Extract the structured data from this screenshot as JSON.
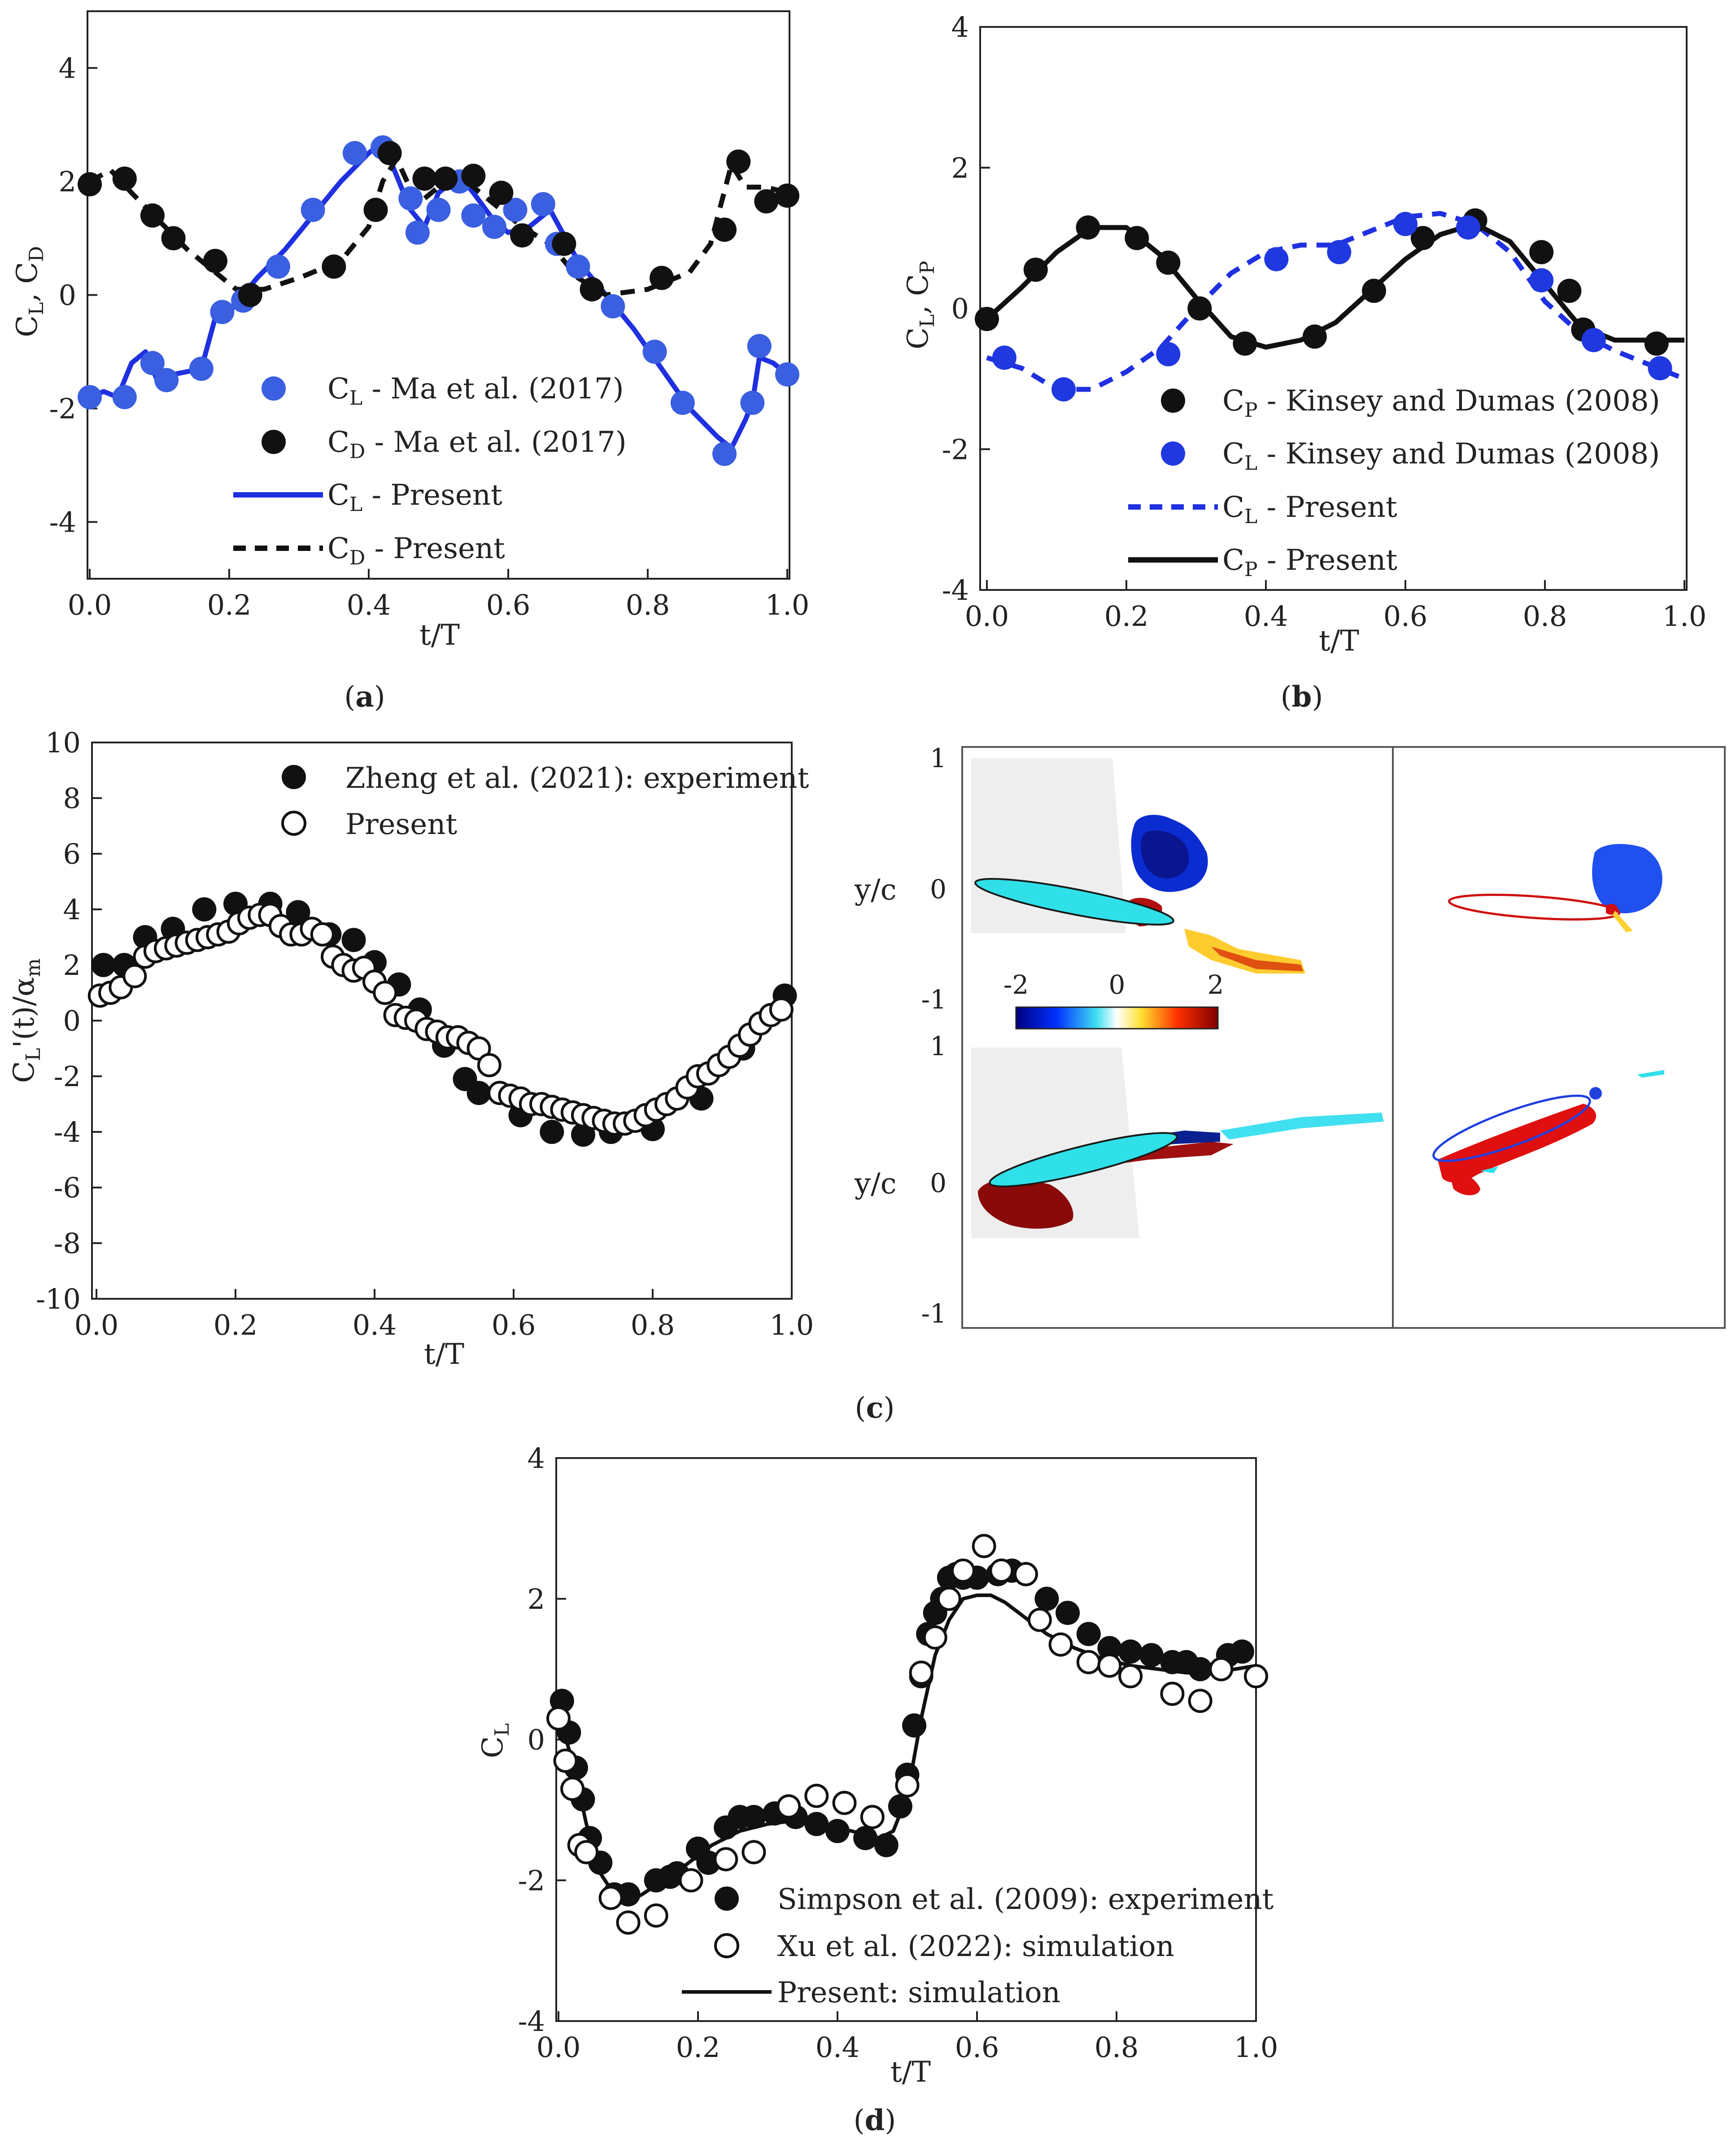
{
  "chart_data": [
    {
      "panel": "a",
      "panel_label": "(a)",
      "type": "line",
      "title": "",
      "xlabel": "t/T",
      "ylabel": "C_L, C_D",
      "xlim": [
        0,
        1.0
      ],
      "ylim": [
        -5,
        5
      ],
      "xticks": [
        "0.0",
        "0.2",
        "0.4",
        "0.6",
        "0.8",
        "1.0"
      ],
      "yticks": [
        "-4",
        "-2",
        "0",
        "2",
        "4"
      ],
      "legend": [
        {
          "label": "C_L - Ma et al. (2017)"
        },
        {
          "label": "C_D - Ma et al. (2017)"
        },
        {
          "label": "C_L - Present"
        },
        {
          "label": "C_D - Present"
        }
      ],
      "series": [
        {
          "name": "C_L - Ma et al. (2017)",
          "kind": "marker",
          "color": "#3a5fe0",
          "x": [
            0.0,
            0.05,
            0.09,
            0.11,
            0.16,
            0.19,
            0.22,
            0.27,
            0.32,
            0.38,
            0.42,
            0.46,
            0.47,
            0.5,
            0.53,
            0.55,
            0.58,
            0.61,
            0.65,
            0.67,
            0.7,
            0.75,
            0.81,
            0.85,
            0.91,
            0.95,
            0.96,
            1.0
          ],
          "y": [
            -1.8,
            -1.8,
            -1.2,
            -1.5,
            -1.3,
            -0.3,
            -0.1,
            0.5,
            1.5,
            2.5,
            2.6,
            1.7,
            1.1,
            1.5,
            2.0,
            1.4,
            1.2,
            1.5,
            1.6,
            0.9,
            0.5,
            -0.2,
            -1.0,
            -1.9,
            -2.8,
            -1.9,
            -0.9,
            -1.4
          ]
        },
        {
          "name": "C_D - Ma et al. (2017)",
          "kind": "marker",
          "color": "#111111",
          "x": [
            0.0,
            0.05,
            0.09,
            0.12,
            0.18,
            0.23,
            0.35,
            0.41,
            0.43,
            0.48,
            0.51,
            0.55,
            0.59,
            0.62,
            0.68,
            0.72,
            0.82,
            0.91,
            0.93,
            0.97,
            1.0
          ],
          "y": [
            1.95,
            2.05,
            1.4,
            1.0,
            0.6,
            0.0,
            0.5,
            1.5,
            2.5,
            2.05,
            2.05,
            2.1,
            1.8,
            1.05,
            0.9,
            0.1,
            0.3,
            1.15,
            2.35,
            1.65,
            1.75
          ]
        },
        {
          "name": "C_L - Present",
          "kind": "line",
          "dash": "none",
          "color": "#1f30e0",
          "x": [
            0.0,
            0.02,
            0.04,
            0.06,
            0.08,
            0.1,
            0.12,
            0.16,
            0.18,
            0.2,
            0.24,
            0.28,
            0.32,
            0.36,
            0.4,
            0.42,
            0.44,
            0.46,
            0.48,
            0.5,
            0.53,
            0.55,
            0.58,
            0.6,
            0.63,
            0.66,
            0.7,
            0.74,
            0.78,
            0.82,
            0.86,
            0.9,
            0.92,
            0.94,
            0.95,
            0.96,
            0.98,
            1.0
          ],
          "y": [
            -1.8,
            -1.7,
            -1.8,
            -1.2,
            -1.0,
            -1.6,
            -1.4,
            -1.3,
            -0.4,
            -0.3,
            0.3,
            0.8,
            1.4,
            2.0,
            2.5,
            2.7,
            2.1,
            1.5,
            1.2,
            1.8,
            2.1,
            1.8,
            1.3,
            1.1,
            1.2,
            1.5,
            0.6,
            0.0,
            -0.6,
            -1.3,
            -2.0,
            -2.5,
            -2.7,
            -2.2,
            -1.9,
            -1.1,
            -1.2,
            -1.4
          ]
        },
        {
          "name": "C_D - Present",
          "kind": "line",
          "dash": "dash",
          "color": "#111111",
          "x": [
            0.0,
            0.03,
            0.06,
            0.1,
            0.14,
            0.18,
            0.21,
            0.25,
            0.3,
            0.36,
            0.4,
            0.42,
            0.44,
            0.47,
            0.5,
            0.54,
            0.58,
            0.62,
            0.66,
            0.7,
            0.74,
            0.8,
            0.86,
            0.89,
            0.92,
            0.94,
            0.97,
            1.0
          ],
          "y": [
            2.0,
            2.2,
            1.8,
            1.3,
            0.8,
            0.4,
            0.1,
            0.1,
            0.3,
            0.6,
            1.2,
            2.0,
            2.4,
            1.6,
            1.9,
            2.0,
            1.6,
            1.2,
            0.9,
            0.3,
            0.0,
            0.1,
            0.4,
            0.9,
            2.3,
            1.9,
            1.9,
            1.8
          ]
        }
      ]
    },
    {
      "panel": "b",
      "panel_label": "(b)",
      "type": "line",
      "title": "",
      "xlabel": "t/T",
      "ylabel": "C_L, C_P",
      "xlim": [
        0,
        1.0
      ],
      "ylim": [
        -4,
        4
      ],
      "xticks": [
        "0.0",
        "0.2",
        "0.4",
        "0.6",
        "0.8",
        "1.0"
      ],
      "yticks": [
        "-4",
        "-2",
        "0",
        "2",
        "4"
      ],
      "legend": [
        {
          "label": "C_P - Kinsey and Dumas (2008)"
        },
        {
          "label": "C_L - Kinsey and Dumas (2008)"
        },
        {
          "label": "C_L - Present"
        },
        {
          "label": "C_P - Present"
        }
      ],
      "series": [
        {
          "name": "C_P - Kinsey and Dumas (2008)",
          "kind": "marker",
          "color": "#111111",
          "x": [
            0.0,
            0.07,
            0.145,
            0.215,
            0.26,
            0.305,
            0.37,
            0.47,
            0.555,
            0.625,
            0.7,
            0.795,
            0.835,
            0.855,
            0.96
          ],
          "y": [
            -0.15,
            0.55,
            1.15,
            1.0,
            0.65,
            0.0,
            -0.5,
            -0.4,
            0.25,
            1.0,
            1.25,
            0.8,
            0.25,
            -0.3,
            -0.5
          ]
        },
        {
          "name": "C_L - Kinsey and Dumas (2008)",
          "kind": "marker",
          "color": "#2038e0",
          "x": [
            0.025,
            0.11,
            0.26,
            0.415,
            0.505,
            0.6,
            0.69,
            0.795,
            0.87,
            0.965
          ],
          "y": [
            -0.7,
            -1.15,
            -0.65,
            0.7,
            0.8,
            1.2,
            1.15,
            0.4,
            -0.45,
            -0.85
          ]
        },
        {
          "name": "C_L - Present",
          "kind": "line",
          "dash": "dash",
          "color": "#1f30e0",
          "x": [
            0.0,
            0.05,
            0.1,
            0.15,
            0.2,
            0.25,
            0.3,
            0.35,
            0.4,
            0.45,
            0.5,
            0.55,
            0.6,
            0.65,
            0.7,
            0.75,
            0.8,
            0.85,
            0.9,
            0.95,
            1.0
          ],
          "y": [
            -0.7,
            -0.85,
            -1.15,
            -1.15,
            -0.9,
            -0.55,
            0.0,
            0.5,
            0.8,
            0.9,
            0.9,
            1.1,
            1.3,
            1.35,
            1.2,
            0.8,
            0.1,
            -0.35,
            -0.6,
            -0.8,
            -1.0
          ]
        },
        {
          "name": "C_P - Present",
          "kind": "line",
          "dash": "none",
          "color": "#111111",
          "x": [
            0.0,
            0.05,
            0.1,
            0.15,
            0.2,
            0.25,
            0.3,
            0.35,
            0.4,
            0.45,
            0.5,
            0.55,
            0.6,
            0.65,
            0.7,
            0.75,
            0.8,
            0.85,
            0.9,
            0.95,
            1.0
          ],
          "y": [
            -0.15,
            0.3,
            0.8,
            1.15,
            1.15,
            0.75,
            0.15,
            -0.4,
            -0.55,
            -0.45,
            -0.2,
            0.25,
            0.7,
            1.05,
            1.2,
            0.95,
            0.35,
            -0.25,
            -0.45,
            -0.45,
            -0.45
          ]
        }
      ]
    },
    {
      "panel": "c",
      "panel_label": "(c)",
      "type": "scatter",
      "title": "",
      "xlabel": "t/T",
      "ylabel": "C_L'(t)/α_m",
      "xlim": [
        0,
        1.0
      ],
      "ylim": [
        -10,
        10
      ],
      "xticks": [
        "0.0",
        "0.2",
        "0.4",
        "0.6",
        "0.8",
        "1.0"
      ],
      "yticks": [
        "-10",
        "-8",
        "-6",
        "-4",
        "-2",
        "0",
        "2",
        "4",
        "6",
        "8",
        "10"
      ],
      "legend": [
        {
          "label": "Zheng et al. (2021): experiment"
        },
        {
          "label": "Present"
        }
      ],
      "series": [
        {
          "name": "Zheng et al. (2021): experiment",
          "kind": "marker",
          "fill": "#111111",
          "color": "#111111",
          "x": [
            0.01,
            0.04,
            0.07,
            0.11,
            0.155,
            0.2,
            0.25,
            0.29,
            0.335,
            0.37,
            0.4,
            0.435,
            0.465,
            0.5,
            0.52,
            0.53,
            0.55,
            0.58,
            0.61,
            0.655,
            0.7,
            0.74,
            0.8,
            0.87,
            0.93,
            0.99
          ],
          "y": [
            2.0,
            2.0,
            3.0,
            3.3,
            4.0,
            4.2,
            4.2,
            3.9,
            3.1,
            2.9,
            2.1,
            1.3,
            0.4,
            -0.9,
            -0.6,
            -2.1,
            -2.6,
            -2.6,
            -3.4,
            -4.0,
            -4.1,
            -4.0,
            -3.9,
            -2.8,
            -1.0,
            0.9
          ]
        },
        {
          "name": "Present",
          "kind": "marker",
          "fill": "#ffffff",
          "color": "#111111",
          "x": [
            0.005,
            0.02,
            0.035,
            0.055,
            0.07,
            0.085,
            0.1,
            0.115,
            0.13,
            0.145,
            0.16,
            0.175,
            0.19,
            0.205,
            0.22,
            0.235,
            0.25,
            0.265,
            0.28,
            0.295,
            0.31,
            0.325,
            0.34,
            0.355,
            0.37,
            0.385,
            0.4,
            0.415,
            0.43,
            0.445,
            0.46,
            0.475,
            0.49,
            0.505,
            0.52,
            0.535,
            0.55,
            0.565,
            0.58,
            0.595,
            0.61,
            0.625,
            0.64,
            0.655,
            0.67,
            0.685,
            0.7,
            0.715,
            0.73,
            0.745,
            0.76,
            0.775,
            0.79,
            0.805,
            0.82,
            0.835,
            0.85,
            0.865,
            0.88,
            0.895,
            0.91,
            0.925,
            0.94,
            0.955,
            0.97,
            0.985
          ],
          "y": [
            0.9,
            1.0,
            1.2,
            1.6,
            2.3,
            2.5,
            2.6,
            2.7,
            2.8,
            2.9,
            3.0,
            3.1,
            3.2,
            3.5,
            3.7,
            3.8,
            3.8,
            3.4,
            3.1,
            3.1,
            3.3,
            3.1,
            2.3,
            2.0,
            1.8,
            1.9,
            1.4,
            1.0,
            0.2,
            0.1,
            0.0,
            -0.3,
            -0.4,
            -0.6,
            -0.6,
            -0.8,
            -1.0,
            -1.6,
            -2.6,
            -2.7,
            -2.8,
            -3.0,
            -3.0,
            -3.1,
            -3.2,
            -3.3,
            -3.4,
            -3.5,
            -3.6,
            -3.7,
            -3.7,
            -3.6,
            -3.4,
            -3.2,
            -3.0,
            -2.8,
            -2.4,
            -2.0,
            -1.9,
            -1.6,
            -1.3,
            -0.9,
            -0.5,
            -0.1,
            0.2,
            0.4
          ]
        }
      ]
    },
    {
      "panel": "c-right",
      "type": "heatmap",
      "title": "",
      "ylabel": "y/c",
      "upper_yticks": [
        "1",
        "0",
        "-1"
      ],
      "lower_yticks": [
        "1",
        "0",
        "-1"
      ],
      "colorbar_ticks": [
        "-2",
        "0",
        "2"
      ],
      "colorbar_range": [
        -2,
        2
      ]
    },
    {
      "panel": "d",
      "panel_label": "(d)",
      "type": "line",
      "title": "",
      "xlabel": "t/T",
      "ylabel": "C_L",
      "xlim": [
        0,
        1.0
      ],
      "ylim": [
        -4,
        4
      ],
      "xticks": [
        "0.0",
        "0.2",
        "0.4",
        "0.6",
        "0.8",
        "1.0"
      ],
      "yticks": [
        "-4",
        "-2",
        "0",
        "2",
        "4"
      ],
      "legend": [
        {
          "label": "Simpson et al. (2009): experiment"
        },
        {
          "label": "Xu et al. (2022): simulation"
        },
        {
          "label": "Present: simulation"
        }
      ],
      "series": [
        {
          "name": "Simpson et al. (2009): experiment",
          "kind": "marker",
          "fill": "#111111",
          "color": "#111111",
          "x": [
            0.005,
            0.015,
            0.025,
            0.035,
            0.045,
            0.06,
            0.08,
            0.1,
            0.14,
            0.16,
            0.17,
            0.2,
            0.215,
            0.24,
            0.26,
            0.28,
            0.31,
            0.34,
            0.37,
            0.4,
            0.44,
            0.47,
            0.49,
            0.5,
            0.51,
            0.52,
            0.53,
            0.54,
            0.55,
            0.56,
            0.57,
            0.58,
            0.6,
            0.63,
            0.65,
            0.67,
            0.7,
            0.73,
            0.76,
            0.79,
            0.82,
            0.85,
            0.88,
            0.9,
            0.92,
            0.96,
            0.98
          ],
          "y": [
            0.55,
            0.1,
            -0.4,
            -0.85,
            -1.4,
            -1.75,
            -2.2,
            -2.2,
            -2.0,
            -1.95,
            -1.9,
            -1.55,
            -1.75,
            -1.25,
            -1.1,
            -1.1,
            -1.05,
            -1.1,
            -1.2,
            -1.3,
            -1.4,
            -1.5,
            -0.95,
            -0.5,
            0.2,
            0.9,
            1.5,
            1.8,
            2.0,
            2.3,
            2.35,
            2.3,
            2.3,
            2.35,
            2.4,
            2.35,
            2.0,
            1.8,
            1.5,
            1.3,
            1.25,
            1.2,
            1.1,
            1.1,
            1.0,
            1.2,
            1.25
          ]
        },
        {
          "name": "Xu et al. (2022): simulation",
          "kind": "marker",
          "fill": "#ffffff",
          "color": "#111111",
          "x": [
            0.0,
            0.01,
            0.02,
            0.03,
            0.04,
            0.075,
            0.1,
            0.14,
            0.19,
            0.24,
            0.28,
            0.33,
            0.37,
            0.41,
            0.45,
            0.5,
            0.52,
            0.54,
            0.56,
            0.58,
            0.61,
            0.635,
            0.67,
            0.69,
            0.72,
            0.76,
            0.79,
            0.82,
            0.88,
            0.92,
            0.95,
            1.0
          ],
          "y": [
            0.3,
            -0.3,
            -0.7,
            -1.5,
            -1.6,
            -2.25,
            -2.6,
            -2.5,
            -2.0,
            -1.7,
            -1.6,
            -0.95,
            -0.8,
            -0.9,
            -1.1,
            -0.65,
            0.95,
            1.45,
            2.0,
            2.4,
            2.75,
            2.4,
            2.35,
            1.7,
            1.35,
            1.1,
            1.05,
            0.9,
            0.65,
            0.55,
            1.0,
            0.9
          ]
        },
        {
          "name": "Present: simulation",
          "kind": "line",
          "dash": "none",
          "color": "#111111",
          "x": [
            0.0,
            0.02,
            0.04,
            0.06,
            0.08,
            0.1,
            0.12,
            0.15,
            0.18,
            0.22,
            0.26,
            0.3,
            0.34,
            0.38,
            0.42,
            0.46,
            0.48,
            0.5,
            0.52,
            0.54,
            0.56,
            0.58,
            0.6,
            0.62,
            0.64,
            0.66,
            0.7,
            0.74,
            0.78,
            0.82,
            0.86,
            0.9,
            0.94,
            0.97,
            1.0
          ],
          "y": [
            0.35,
            -0.3,
            -1.2,
            -1.9,
            -2.2,
            -2.3,
            -2.2,
            -2.0,
            -1.8,
            -1.5,
            -1.3,
            -1.2,
            -1.15,
            -1.2,
            -1.3,
            -1.4,
            -1.3,
            -0.8,
            0.3,
            1.2,
            1.7,
            2.0,
            2.05,
            2.05,
            1.95,
            1.8,
            1.5,
            1.3,
            1.15,
            1.05,
            1.0,
            0.95,
            0.95,
            1.0,
            1.05
          ]
        }
      ]
    }
  ]
}
